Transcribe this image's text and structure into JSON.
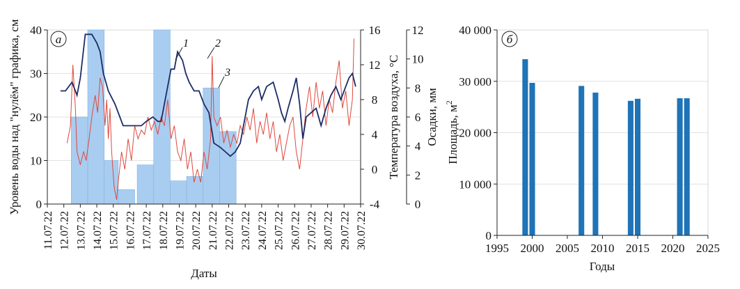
{
  "chart_data": [
    {
      "type": "bar+line",
      "panel_label": "а",
      "series_labels": [
        "1",
        "2",
        "3"
      ],
      "xlabel": "Даты",
      "ylabel_left": "Уровень воды над \"нулём\" графика, см",
      "ylabel_right_temp": "Температура воздуха, °С",
      "ylabel_right_precip": "Осадки, мм",
      "left_axis": {
        "ylim": [
          0,
          40
        ],
        "ticks": [
          0,
          10,
          20,
          30,
          40
        ]
      },
      "temp_axis": {
        "ylim": [
          -4,
          16
        ],
        "ticks": [
          -4,
          0,
          4,
          8,
          12,
          16
        ]
      },
      "precip_axis": {
        "ylim": [
          0,
          12
        ],
        "ticks": [
          0,
          2,
          4,
          6,
          8,
          10,
          12
        ]
      },
      "x_range": [
        0,
        19
      ],
      "date_ticks": [
        "11.07.22",
        "12.07.22",
        "13.07.22",
        "14.07.22",
        "15.07.22",
        "16.07.22",
        "17.07.22",
        "18.07.22",
        "19.07.22",
        "20.07.22",
        "21.07.22",
        "22.07.22",
        "23.07.22",
        "24.07.22",
        "25.07.22",
        "26.07.22",
        "27.07.22",
        "28.07.22",
        "29.07.22",
        "30.07.22"
      ],
      "precipitation": [
        {
          "start": 1.45,
          "end": 2.45,
          "value": 6
        },
        {
          "start": 2.45,
          "end": 3.45,
          "value": 12
        },
        {
          "start": 3.45,
          "end": 4.3,
          "value": 3
        },
        {
          "start": 4.3,
          "end": 5.3,
          "value": 1
        },
        {
          "start": 5.45,
          "end": 6.45,
          "value": 2.7
        },
        {
          "start": 6.45,
          "end": 7.45,
          "value": 12
        },
        {
          "start": 7.45,
          "end": 8.45,
          "value": 1.6
        },
        {
          "start": 8.45,
          "end": 9.45,
          "value": 1.9
        },
        {
          "start": 9.45,
          "end": 10.45,
          "value": 8
        },
        {
          "start": 10.45,
          "end": 11.45,
          "value": 5
        }
      ],
      "water_level_smooth": [
        [
          0.8,
          26
        ],
        [
          1.1,
          26
        ],
        [
          1.5,
          28
        ],
        [
          1.8,
          25
        ],
        [
          2.0,
          29
        ],
        [
          2.3,
          39
        ],
        [
          2.7,
          39
        ],
        [
          3.0,
          37
        ],
        [
          3.2,
          35
        ],
        [
          3.4,
          30
        ],
        [
          3.7,
          26
        ],
        [
          4.1,
          23
        ],
        [
          4.4,
          20
        ],
        [
          4.6,
          18
        ],
        [
          5.0,
          18
        ],
        [
          5.4,
          18
        ],
        [
          5.7,
          18
        ],
        [
          6.0,
          19
        ],
        [
          6.4,
          20
        ],
        [
          6.7,
          19
        ],
        [
          6.9,
          19
        ],
        [
          7.2,
          25
        ],
        [
          7.5,
          31
        ],
        [
          7.7,
          31
        ],
        [
          7.9,
          35
        ],
        [
          8.2,
          33
        ],
        [
          8.4,
          30
        ],
        [
          8.6,
          28
        ],
        [
          8.9,
          26
        ],
        [
          9.2,
          26
        ],
        [
          9.5,
          23
        ],
        [
          9.8,
          21
        ],
        [
          10.1,
          14
        ],
        [
          10.5,
          13
        ],
        [
          10.8,
          12
        ],
        [
          11.1,
          11
        ],
        [
          11.4,
          12
        ],
        [
          11.7,
          14
        ],
        [
          11.9,
          18
        ],
        [
          12.2,
          24
        ],
        [
          12.5,
          26
        ],
        [
          12.8,
          27
        ],
        [
          13.0,
          24
        ],
        [
          13.3,
          27
        ],
        [
          13.7,
          28
        ],
        [
          14.0,
          24
        ],
        [
          14.2,
          21
        ],
        [
          14.4,
          19
        ],
        [
          14.6,
          22
        ],
        [
          14.9,
          26
        ],
        [
          15.1,
          29
        ],
        [
          15.3,
          23
        ],
        [
          15.5,
          15
        ],
        [
          15.7,
          20
        ],
        [
          16.0,
          21
        ],
        [
          16.3,
          22
        ],
        [
          16.6,
          18
        ],
        [
          16.9,
          22
        ],
        [
          17.2,
          25
        ],
        [
          17.5,
          27
        ],
        [
          17.8,
          24
        ],
        [
          18.0,
          26
        ],
        [
          18.3,
          29
        ],
        [
          18.5,
          30
        ],
        [
          18.7,
          27
        ]
      ],
      "water_level_hourly_ref": [
        [
          1.2,
          14
        ],
        [
          1.4,
          18
        ],
        [
          1.55,
          32
        ],
        [
          1.7,
          22
        ],
        [
          1.8,
          12
        ],
        [
          2.0,
          9
        ],
        [
          2.2,
          12
        ],
        [
          2.35,
          10
        ],
        [
          2.5,
          14
        ],
        [
          2.7,
          20
        ],
        [
          2.9,
          25
        ],
        [
          3.05,
          21
        ],
        [
          3.2,
          29
        ],
        [
          3.35,
          27
        ],
        [
          3.5,
          18
        ],
        [
          3.6,
          24
        ],
        [
          3.7,
          15
        ],
        [
          3.8,
          22
        ],
        [
          3.9,
          12
        ],
        [
          4.05,
          4
        ],
        [
          4.2,
          1
        ],
        [
          4.3,
          5
        ],
        [
          4.5,
          12
        ],
        [
          4.7,
          8
        ],
        [
          4.9,
          15
        ],
        [
          5.1,
          10
        ],
        [
          5.3,
          18
        ],
        [
          5.5,
          15
        ],
        [
          5.7,
          17
        ],
        [
          5.9,
          16
        ],
        [
          6.1,
          20
        ],
        [
          6.3,
          17
        ],
        [
          6.5,
          19
        ],
        [
          6.7,
          16
        ],
        [
          6.9,
          20
        ],
        [
          7.1,
          18
        ],
        [
          7.3,
          24
        ],
        [
          7.5,
          15
        ],
        [
          7.7,
          18
        ],
        [
          7.9,
          12
        ],
        [
          8.1,
          10
        ],
        [
          8.3,
          15
        ],
        [
          8.5,
          8
        ],
        [
          8.7,
          12
        ],
        [
          8.9,
          5
        ],
        [
          9.1,
          8
        ],
        [
          9.3,
          5
        ],
        [
          9.5,
          12
        ],
        [
          9.7,
          8
        ],
        [
          9.9,
          15
        ],
        [
          10.0,
          34
        ],
        [
          10.1,
          20
        ],
        [
          10.3,
          18
        ],
        [
          10.5,
          20
        ],
        [
          10.7,
          14
        ],
        [
          10.9,
          17
        ],
        [
          11.1,
          13
        ],
        [
          11.3,
          16
        ],
        [
          11.5,
          14
        ],
        [
          11.7,
          18
        ],
        [
          11.9,
          16
        ],
        [
          12.1,
          20
        ],
        [
          12.3,
          17
        ],
        [
          12.5,
          22
        ],
        [
          12.7,
          14
        ],
        [
          12.9,
          19
        ],
        [
          13.1,
          16
        ],
        [
          13.3,
          21
        ],
        [
          13.5,
          15
        ],
        [
          13.7,
          19
        ],
        [
          13.9,
          12
        ],
        [
          14.1,
          16
        ],
        [
          14.3,
          10
        ],
        [
          14.5,
          14
        ],
        [
          14.7,
          18
        ],
        [
          14.9,
          20
        ],
        [
          15.1,
          12
        ],
        [
          15.3,
          8
        ],
        [
          15.5,
          15
        ],
        [
          15.7,
          22
        ],
        [
          15.9,
          27
        ],
        [
          16.1,
          20
        ],
        [
          16.3,
          28
        ],
        [
          16.5,
          22
        ],
        [
          16.7,
          26
        ],
        [
          16.9,
          18
        ],
        [
          17.1,
          24
        ],
        [
          17.3,
          21
        ],
        [
          17.5,
          28
        ],
        [
          17.7,
          33
        ],
        [
          17.9,
          22
        ],
        [
          18.1,
          26
        ],
        [
          18.3,
          18
        ],
        [
          18.5,
          24
        ],
        [
          18.6,
          38
        ]
      ]
    },
    {
      "type": "bar",
      "panel_label": "б",
      "xlabel": "Годы",
      "ylabel": "Площадь, м2",
      "xlim": [
        1995,
        2025
      ],
      "x_ticks": [
        1995,
        2000,
        2005,
        2010,
        2015,
        2020,
        2025
      ],
      "ylim": [
        0,
        40000
      ],
      "y_ticks": [
        0,
        10000,
        20000,
        30000,
        40000
      ],
      "y_tick_labels": [
        "0",
        "10 000",
        "20 000",
        "30 000",
        "40 000"
      ],
      "years": [
        1999,
        2000,
        2007,
        2009,
        2014,
        2015,
        2021,
        2022
      ],
      "values": [
        34300,
        29700,
        29100,
        27800,
        26200,
        26600,
        26700,
        26700
      ]
    }
  ],
  "colors": {
    "bars_left": "#a9cdf0",
    "bars_left_stroke": "#7fb3e2",
    "smooth_line": "#1c2c66",
    "hourly_line": "#e0473c",
    "bars_right": "#1f73b7",
    "axis": "#222222",
    "grid": "#d8d8d8"
  }
}
